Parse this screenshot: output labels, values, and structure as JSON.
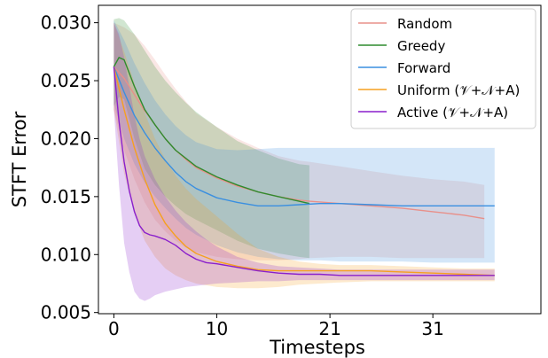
{
  "chart_data": {
    "type": "line",
    "xlabel": "Timesteps",
    "ylabel": "STFT Error",
    "xlim": [
      -1.5,
      41.5
    ],
    "ylim": [
      0.0049,
      0.0315
    ],
    "xticks": [
      0,
      10,
      21,
      31
    ],
    "xtick_labels": [
      "0",
      "10",
      "21",
      "31"
    ],
    "yticks": [
      0.005,
      0.01,
      0.015,
      0.02,
      0.025,
      0.03
    ],
    "ytick_labels": [
      "0.005",
      "0.010",
      "0.015",
      "0.020",
      "0.025",
      "0.030"
    ],
    "grid": false,
    "legend_position": "top-right",
    "series": [
      {
        "name": "Random",
        "color": "#e8908a",
        "x": [
          0,
          1,
          2,
          3,
          4,
          5,
          6,
          7,
          8,
          10,
          12,
          14,
          16,
          18,
          19,
          22,
          25,
          28,
          31,
          34,
          36
        ],
        "y": [
          0.0262,
          0.0252,
          0.0238,
          0.0224,
          0.0212,
          0.02,
          0.019,
          0.0182,
          0.0175,
          0.0166,
          0.0159,
          0.0154,
          0.015,
          0.0147,
          0.0146,
          0.0144,
          0.0142,
          0.014,
          0.0137,
          0.0134,
          0.0131
        ],
        "band_upper": [
          0.03,
          0.0296,
          0.029,
          0.028,
          0.0268,
          0.0255,
          0.0243,
          0.0232,
          0.0222,
          0.021,
          0.02,
          0.0192,
          0.0185,
          0.0181,
          0.018,
          0.0176,
          0.0172,
          0.0168,
          0.0165,
          0.0163,
          0.016
        ],
        "band_lower": [
          0.0225,
          0.019,
          0.0165,
          0.0145,
          0.013,
          0.012,
          0.0112,
          0.0106,
          0.0102,
          0.0098,
          0.0096,
          0.0095,
          0.0095,
          0.0096,
          0.0097,
          0.0098,
          0.0098,
          0.0097,
          0.0097,
          0.0097,
          0.0097
        ]
      },
      {
        "name": "Greedy",
        "color": "#2e8b2e",
        "x": [
          0,
          0.5,
          1,
          2,
          3,
          4,
          5,
          6,
          7,
          8,
          10,
          12,
          14,
          16,
          18,
          19
        ],
        "y": [
          0.0262,
          0.027,
          0.0268,
          0.0245,
          0.0225,
          0.0212,
          0.02,
          0.019,
          0.0183,
          0.0176,
          0.0167,
          0.016,
          0.0154,
          0.015,
          0.0146,
          0.0144
        ],
        "band_upper": [
          0.0303,
          0.0304,
          0.0302,
          0.029,
          0.0276,
          0.0262,
          0.025,
          0.024,
          0.0231,
          0.0223,
          0.021,
          0.0198,
          0.019,
          0.0183,
          0.0178,
          0.0177
        ],
        "band_lower": [
          0.0228,
          0.0236,
          0.0234,
          0.02,
          0.0174,
          0.016,
          0.015,
          0.0142,
          0.0135,
          0.013,
          0.0121,
          0.0112,
          0.0105,
          0.0101,
          0.0098,
          0.0097
        ]
      },
      {
        "name": "Forward",
        "color": "#3a8fe0",
        "x": [
          0,
          1,
          2,
          3,
          4,
          5,
          6,
          7,
          8,
          10,
          12,
          14,
          16,
          18,
          20,
          22,
          25,
          28,
          31,
          34,
          37
        ],
        "y": [
          0.0262,
          0.024,
          0.022,
          0.0205,
          0.0192,
          0.0181,
          0.0171,
          0.0163,
          0.0157,
          0.0149,
          0.0145,
          0.0142,
          0.0142,
          0.0143,
          0.0144,
          0.0144,
          0.0143,
          0.0142,
          0.0142,
          0.0142,
          0.0142
        ],
        "band_upper": [
          0.0302,
          0.0285,
          0.0265,
          0.0248,
          0.0233,
          0.0221,
          0.0211,
          0.0203,
          0.0197,
          0.0191,
          0.019,
          0.0191,
          0.0192,
          0.0192,
          0.0192,
          0.0192,
          0.0192,
          0.0192,
          0.0192,
          0.0192,
          0.0192
        ],
        "band_lower": [
          0.023,
          0.02,
          0.0178,
          0.0162,
          0.015,
          0.014,
          0.0131,
          0.0123,
          0.0117,
          0.0108,
          0.0102,
          0.0098,
          0.0096,
          0.0095,
          0.0095,
          0.0094,
          0.0094,
          0.0094,
          0.0093,
          0.0093,
          0.0093
        ]
      },
      {
        "name": "Uniform (𝒱+𝒩+A)",
        "color": "#f5a020",
        "x": [
          0,
          1,
          2,
          3,
          4,
          5,
          6,
          7,
          8,
          10,
          12,
          14,
          16,
          18,
          20,
          22,
          25,
          28,
          31,
          34,
          37
        ],
        "y": [
          0.0262,
          0.0225,
          0.0192,
          0.0165,
          0.0143,
          0.0127,
          0.0116,
          0.0107,
          0.0101,
          0.0094,
          0.009,
          0.0087,
          0.0086,
          0.0086,
          0.0086,
          0.0086,
          0.0086,
          0.0085,
          0.0084,
          0.0083,
          0.0082
        ],
        "band_upper": [
          0.03,
          0.0275,
          0.0248,
          0.0222,
          0.02,
          0.0182,
          0.0168,
          0.0157,
          0.0148,
          0.0133,
          0.0118,
          0.0105,
          0.0098,
          0.0094,
          0.0092,
          0.0091,
          0.0091,
          0.009,
          0.0089,
          0.0088,
          0.0088
        ],
        "band_lower": [
          0.0225,
          0.017,
          0.0135,
          0.0112,
          0.0098,
          0.0088,
          0.0082,
          0.0078,
          0.0075,
          0.0072,
          0.0071,
          0.0071,
          0.0072,
          0.0074,
          0.0075,
          0.0076,
          0.0077,
          0.0077,
          0.0077,
          0.0077,
          0.0077
        ]
      },
      {
        "name": "Active (𝒱+𝒩+A)",
        "color": "#8a1fcc",
        "x": [
          0,
          0.5,
          1,
          1.5,
          2,
          2.5,
          3,
          3.5,
          4,
          5,
          6,
          7,
          8,
          9,
          10,
          12,
          14,
          16,
          18,
          20,
          22,
          25,
          28,
          31,
          34,
          37
        ],
        "y": [
          0.0262,
          0.0215,
          0.018,
          0.0155,
          0.0137,
          0.0125,
          0.0119,
          0.0117,
          0.0116,
          0.0113,
          0.0108,
          0.0101,
          0.0096,
          0.0093,
          0.0092,
          0.0089,
          0.0086,
          0.0084,
          0.0083,
          0.0083,
          0.0082,
          0.0082,
          0.0082,
          0.0082,
          0.0082,
          0.0082
        ],
        "band_upper": [
          0.03,
          0.029,
          0.027,
          0.0245,
          0.022,
          0.02,
          0.0185,
          0.0175,
          0.0165,
          0.015,
          0.0138,
          0.0128,
          0.012,
          0.0113,
          0.0107,
          0.0098,
          0.0093,
          0.009,
          0.0089,
          0.0088,
          0.0087,
          0.0087,
          0.0087,
          0.0087,
          0.0087,
          0.0087
        ],
        "band_lower": [
          0.0225,
          0.016,
          0.011,
          0.0085,
          0.0068,
          0.0062,
          0.006,
          0.0062,
          0.0065,
          0.0068,
          0.007,
          0.0072,
          0.0073,
          0.0074,
          0.0075,
          0.0076,
          0.0077,
          0.0077,
          0.0078,
          0.0078,
          0.0078,
          0.0078,
          0.0078,
          0.0078,
          0.0078,
          0.0078
        ]
      }
    ]
  }
}
